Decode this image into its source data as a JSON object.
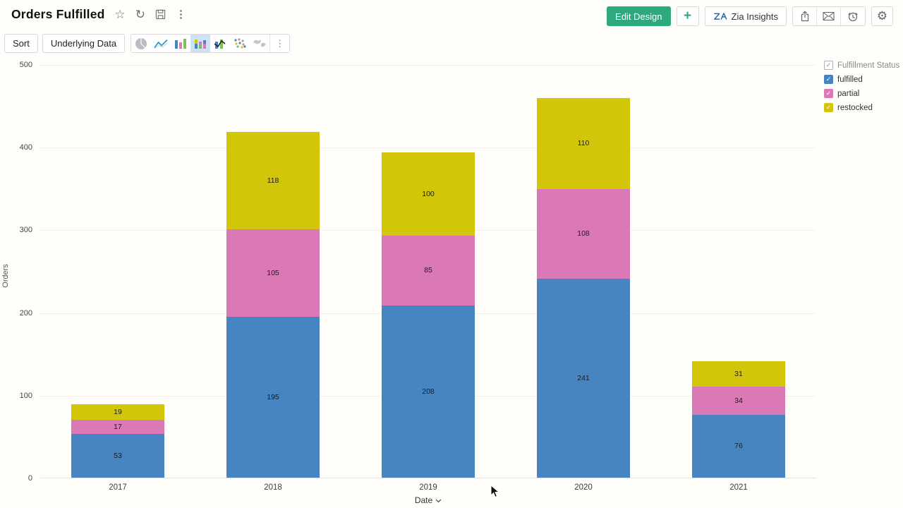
{
  "header": {
    "title": "Orders Fulfilled",
    "edit_design_label": "Edit Design",
    "add_label": "+",
    "zia_label": "Zia Insights"
  },
  "toolbar": {
    "sort_label": "Sort",
    "underlying_data_label": "Underlying Data",
    "chart_types": [
      "pie",
      "line",
      "bar",
      "stacked-bar",
      "combo",
      "scatter",
      "map"
    ],
    "selected_chart_type": "stacked-bar"
  },
  "icons": {
    "star": "☆",
    "refresh": "↻",
    "more": "⋮",
    "gear": "⚙",
    "check": "✓"
  },
  "chart_data": {
    "type": "bar",
    "stacked": true,
    "title": "Orders Fulfilled",
    "categories": [
      "2017",
      "2018",
      "2019",
      "2020",
      "2021"
    ],
    "series": [
      {
        "name": "fulfilled",
        "color": "#4785c2",
        "values": [
          53,
          195,
          208,
          241,
          76
        ]
      },
      {
        "name": "partial",
        "color": "#db79b7",
        "values": [
          17,
          105,
          85,
          108,
          34
        ]
      },
      {
        "name": "restocked",
        "color": "#d3c50a",
        "values": [
          19,
          118,
          100,
          110,
          31
        ]
      }
    ],
    "xlabel": "Date",
    "ylabel": "Orders",
    "ylim": [
      0,
      500
    ],
    "ytick_step": 100,
    "grid": true,
    "legend_position": "right",
    "legend_title": "Fulfillment Status"
  },
  "colors": {
    "primary_button": "#30a87e",
    "selected_tool_bg": "#cfe1f4",
    "gridline": "#f0f0ed"
  }
}
